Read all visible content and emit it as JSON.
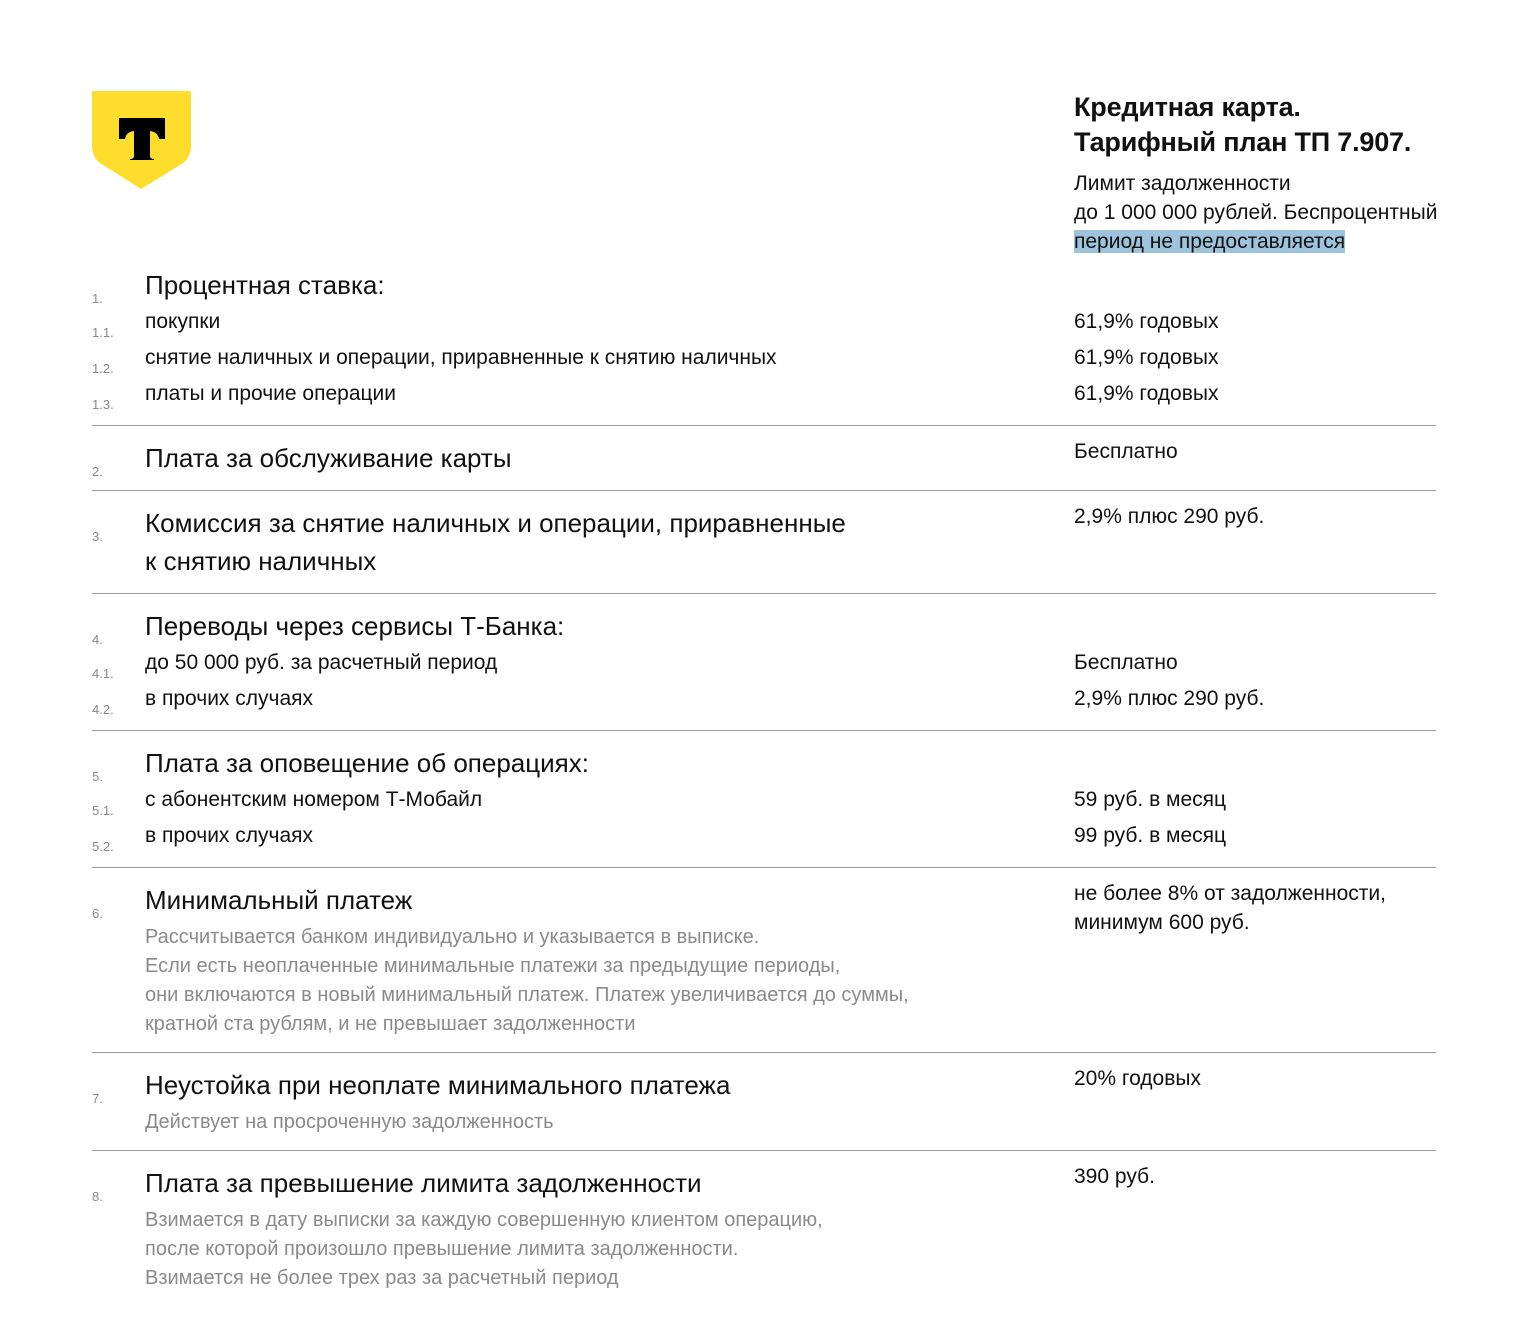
{
  "logo": {
    "letter": "T",
    "color": "#ffdd2d"
  },
  "header": {
    "title_line1": "Кредитная карта.",
    "title_line2": "Тарифный план ТП 7.907.",
    "subtitle_line1": "Лимит задолженности",
    "subtitle_line2": "до 1 000 000 рублей. Беспроцентный",
    "subtitle_line3": "период не предоставляется"
  },
  "sections": [
    {
      "num": "1.",
      "title": "Процентная ставка:",
      "value": "",
      "rows": [
        {
          "num": "1.1.",
          "label": "покупки",
          "value": "61,9% годовых"
        },
        {
          "num": "1.2.",
          "label": "снятие наличных и операции, приравненные к снятию наличных",
          "value": "61,9% годовых"
        },
        {
          "num": "1.3.",
          "label": "платы и прочие операции",
          "value": "61,9% годовых"
        }
      ]
    },
    {
      "num": "2.",
      "title": "Плата за обслуживание карты",
      "value": "Бесплатно"
    },
    {
      "num": "3.",
      "title": "Комиссия за снятие наличных и операции, приравненные",
      "title2": "к снятию наличных",
      "value": "2,9% плюс 290 руб."
    },
    {
      "num": "4.",
      "title": "Переводы через сервисы Т-Банка:",
      "value": "",
      "rows": [
        {
          "num": "4.1.",
          "label": "до 50 000 руб. за расчетный период",
          "value": "Бесплатно"
        },
        {
          "num": "4.2.",
          "label": "в прочих случаях",
          "value": "2,9% плюс 290 руб."
        }
      ]
    },
    {
      "num": "5.",
      "title": "Плата за оповещение об операциях:",
      "value": "",
      "rows": [
        {
          "num": "5.1.",
          "label": "с абонентским номером Т-Мобайл",
          "value": "59 руб. в месяц"
        },
        {
          "num": "5.2.",
          "label": "в прочих случаях",
          "value": "99 руб. в месяц"
        }
      ]
    },
    {
      "num": "6.",
      "title": "Минимальный платеж",
      "value": "не более 8% от задолженности,\nминимум 600 руб.",
      "notes": [
        "Рассчитывается банком индивидуально и указывается в выписке.",
        "Если есть неоплаченные минимальные платежи за предыдущие периоды,",
        "они включаются в новый минимальный платеж. Платеж увеличивается до суммы,",
        "кратной ста рублям, и не превышает задолженности"
      ]
    },
    {
      "num": "7.",
      "title": "Неустойка при неоплате минимального платежа",
      "value": "20% годовых",
      "notes": [
        "Действует на просроченную задолженность"
      ]
    },
    {
      "num": "8.",
      "title": "Плата за превышение лимита задолженности",
      "value": "390 руб.",
      "notes": [
        "Взимается в дату выписки за каждую совершенную клиентом операцию,",
        "после которой произошло превышение лимита задолженности.",
        "Взимается не более трех раз за расчетный период"
      ]
    }
  ]
}
